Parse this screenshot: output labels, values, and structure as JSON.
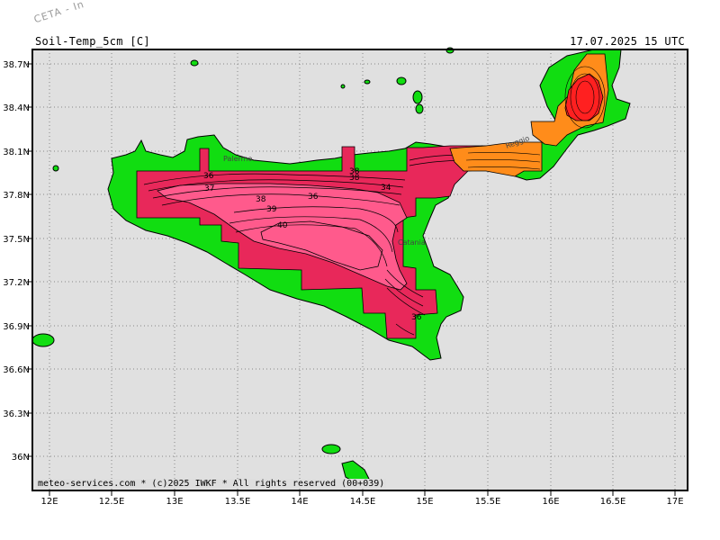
{
  "header": {
    "title": "Soil-Temp_5cm [C]",
    "datetime": "17.07.2025 15 UTC"
  },
  "watermark": "CETA - In",
  "credit": "meteo-services.com * (c)2025 IWKF * All rights reserved (00+039)",
  "axes": {
    "lat_labels": [
      "38.7N",
      "38.4N",
      "38.1N",
      "37.8N",
      "37.5N",
      "37.2N",
      "36.9N",
      "36.6N",
      "36.3N",
      "36N"
    ],
    "lon_labels": [
      "12E",
      "12.5E",
      "13E",
      "13.5E",
      "14E",
      "14.5E",
      "15E",
      "15.5E",
      "16E",
      "16.5E",
      "17E"
    ]
  },
  "cities": [
    {
      "name": "Palermo"
    },
    {
      "name": "Catania"
    },
    {
      "name": "Reggio"
    }
  ],
  "contour_labels": [
    "36",
    "37",
    "38",
    "39",
    "40",
    "36",
    "38",
    "34",
    "38",
    "36"
  ],
  "colors": {
    "sea": "#e0e0e0",
    "land": "#11dd11",
    "temp_36_38": "#e8285a",
    "temp_38_40": "#ff5a8c",
    "temp_hot": "#ff2020",
    "temp_orange": "#ff8c1a",
    "temp_darkorange": "#ff6a00"
  }
}
